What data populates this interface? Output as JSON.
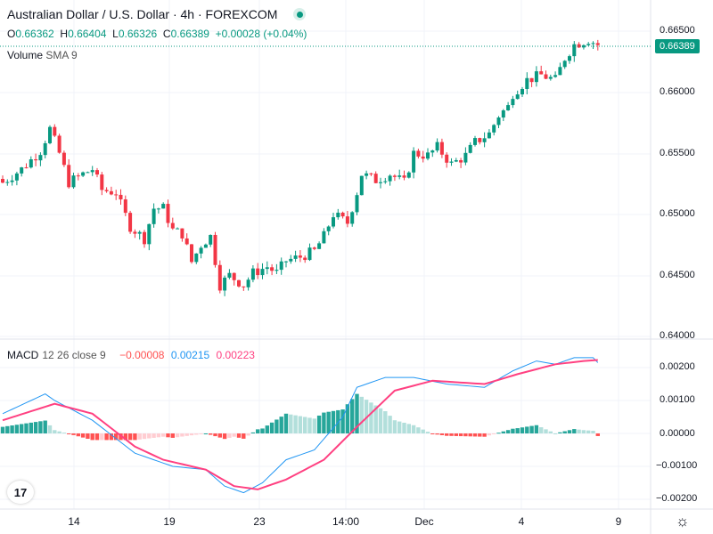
{
  "header": {
    "title": "Australian Dollar / U.S. Dollar · 4h · FOREXCOM",
    "status_color": "#089981"
  },
  "ohlc": {
    "o_label": "O",
    "o": "0.66362",
    "h_label": "H",
    "h": "0.66404",
    "l_label": "L",
    "l": "0.66326",
    "c_label": "C",
    "c": "0.66389",
    "change": "+0.00028 (+0.04%)"
  },
  "volume": {
    "label": "Volume",
    "params": "SMA 9"
  },
  "macd": {
    "label": "MACD",
    "params": "12 26 close 9",
    "hist": "−0.00008",
    "macd": "0.00215",
    "signal": "0.00223"
  },
  "price_axis": [
    "0.66500",
    "0.66000",
    "0.65500",
    "0.65000",
    "0.64500",
    "0.64000"
  ],
  "macd_axis": [
    "0.00200",
    "0.00100",
    "0.00000",
    "−0.00100",
    "−0.00200"
  ],
  "current_price": "0.66389",
  "time_axis": [
    "14",
    "19",
    "23",
    "14:00",
    "Dec",
    "4",
    "9"
  ],
  "colors": {
    "up": "#089981",
    "down": "#f23645",
    "macd": "#2196f3",
    "signal": "#ff4081"
  },
  "chart_data": {
    "type": "candlestick",
    "price_range": [
      0.64,
      0.665
    ],
    "close_keypoints": [
      [
        0,
        0.6526
      ],
      [
        4,
        0.6537
      ],
      [
        8,
        0.6552
      ],
      [
        10,
        0.657
      ],
      [
        12,
        0.655
      ],
      [
        14,
        0.6526
      ],
      [
        17,
        0.6533
      ],
      [
        19,
        0.6537
      ],
      [
        21,
        0.652
      ],
      [
        24,
        0.6518
      ],
      [
        25,
        0.6508
      ],
      [
        27,
        0.649
      ],
      [
        30,
        0.648
      ],
      [
        32,
        0.6505
      ],
      [
        34,
        0.6505
      ],
      [
        36,
        0.6487
      ],
      [
        38,
        0.6484
      ],
      [
        40,
        0.6461
      ],
      [
        42,
        0.6475
      ],
      [
        44,
        0.6482
      ],
      [
        46,
        0.6442
      ],
      [
        48,
        0.645
      ],
      [
        51,
        0.6442
      ],
      [
        53,
        0.6452
      ],
      [
        56,
        0.6457
      ],
      [
        58,
        0.6452
      ],
      [
        60,
        0.6462
      ],
      [
        63,
        0.6465
      ],
      [
        66,
        0.647
      ],
      [
        68,
        0.6482
      ],
      [
        70,
        0.65
      ],
      [
        73,
        0.6493
      ],
      [
        75,
        0.6518
      ],
      [
        76,
        0.6533
      ],
      [
        79,
        0.6528
      ],
      [
        82,
        0.6533
      ],
      [
        85,
        0.6526
      ],
      [
        87,
        0.655
      ],
      [
        90,
        0.6548
      ],
      [
        92,
        0.6555
      ],
      [
        95,
        0.6541
      ],
      [
        98,
        0.6548
      ],
      [
        100,
        0.6559
      ],
      [
        103,
        0.6566
      ],
      [
        105,
        0.6581
      ],
      [
        107,
        0.6588
      ],
      [
        108,
        0.6599
      ],
      [
        111,
        0.661
      ],
      [
        114,
        0.6614
      ],
      [
        117,
        0.661
      ],
      [
        119,
        0.6628
      ],
      [
        121,
        0.6639
      ],
      [
        124,
        0.6643
      ],
      [
        126,
        0.6639
      ]
    ],
    "macd_range": [
      -0.0022,
      0.0024
    ],
    "macd_keypoints": [
      [
        0,
        0.0006
      ],
      [
        9,
        0.0012
      ],
      [
        11,
        0.001
      ],
      [
        19,
        0.0004
      ],
      [
        28,
        -0.0006
      ],
      [
        36,
        -0.001
      ],
      [
        43,
        -0.0011
      ],
      [
        47,
        -0.0016
      ],
      [
        51,
        -0.0018
      ],
      [
        55,
        -0.0015
      ],
      [
        60,
        -0.0008
      ],
      [
        66,
        -0.0005
      ],
      [
        72,
        0.0005
      ],
      [
        75,
        0.0014
      ],
      [
        81,
        0.0017
      ],
      [
        87,
        0.0017
      ],
      [
        94,
        0.0015
      ],
      [
        102,
        0.0014
      ],
      [
        108,
        0.0019
      ],
      [
        113,
        0.0022
      ],
      [
        117,
        0.0021
      ],
      [
        121,
        0.0023
      ],
      [
        125,
        0.0023
      ],
      [
        126,
        0.00215
      ]
    ],
    "signal_keypoints": [
      [
        0,
        0.0004
      ],
      [
        11,
        0.0009
      ],
      [
        19,
        0.0006
      ],
      [
        28,
        -0.0004
      ],
      [
        34,
        -0.0008
      ],
      [
        43,
        -0.0011
      ],
      [
        49,
        -0.0016
      ],
      [
        54,
        -0.0017
      ],
      [
        60,
        -0.0014
      ],
      [
        68,
        -0.0008
      ],
      [
        75,
        0.0002
      ],
      [
        83,
        0.0013
      ],
      [
        91,
        0.0016
      ],
      [
        102,
        0.0015
      ],
      [
        109,
        0.0018
      ],
      [
        117,
        0.0021
      ],
      [
        123,
        0.0022
      ],
      [
        126,
        0.00223
      ]
    ]
  }
}
